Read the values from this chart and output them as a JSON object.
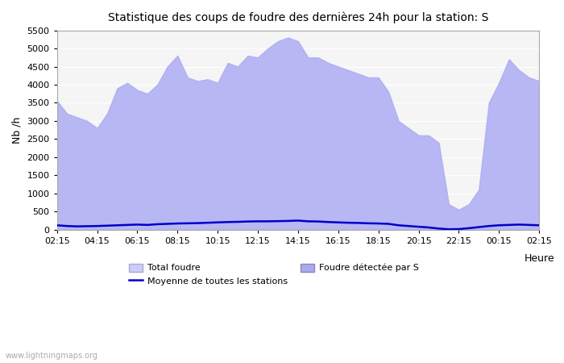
{
  "title": "Statistique des coups de foudre des dernières 24h pour la station: S",
  "xlabel": "Heure",
  "ylabel": "Nb /h",
  "xlim": [
    0,
    24
  ],
  "ylim": [
    0,
    5500
  ],
  "yticks": [
    0,
    500,
    1000,
    1500,
    2000,
    2500,
    3000,
    3500,
    4000,
    4500,
    5000,
    5500
  ],
  "xtick_labels": [
    "02:15",
    "04:15",
    "06:15",
    "08:15",
    "10:15",
    "12:15",
    "14:15",
    "16:15",
    "18:15",
    "20:15",
    "22:15",
    "00:15",
    "02:15"
  ],
  "background_color": "#ffffff",
  "plot_bg_color": "#f5f5f5",
  "total_foudre_color": "#ccccff",
  "foudre_detectee_color": "#aaaaee",
  "moyenne_color": "#0000cc",
  "watermark": "www.lightningmaps.org",
  "legend_total": "Total foudre",
  "legend_foudre": "Foudre détectée par S",
  "legend_moyenne": "Moyenne de toutes les stations",
  "x": [
    0,
    0.5,
    1,
    1.5,
    2,
    2.5,
    3,
    3.5,
    4,
    4.5,
    5,
    5.5,
    6,
    6.5,
    7,
    7.5,
    8,
    8.5,
    9,
    9.5,
    10,
    10.5,
    11,
    11.5,
    12,
    12.5,
    13,
    13.5,
    14,
    14.5,
    15,
    15.5,
    16,
    16.5,
    17,
    17.5,
    18,
    18.5,
    19,
    19.5,
    20,
    20.5,
    21,
    21.5,
    22,
    22.5,
    23,
    23.5,
    24
  ],
  "total_foudre_y": [
    3550,
    3200,
    3100,
    3000,
    2800,
    3200,
    3900,
    4050,
    3850,
    3750,
    4000,
    4500,
    4800,
    4200,
    4100,
    4150,
    4050,
    4600,
    4500,
    4800,
    4750,
    5000,
    5200,
    5300,
    5200,
    4750,
    4750,
    4600,
    4500,
    4400,
    4300,
    4200,
    4200,
    3800,
    3000,
    2800,
    2600,
    2600,
    2400,
    700,
    550,
    700,
    1100,
    3500,
    4050,
    4700,
    4400,
    4200,
    4100
  ],
  "foudre_detectee_y": [
    3550,
    3200,
    3100,
    3000,
    2800,
    3200,
    3900,
    4050,
    3850,
    3750,
    4000,
    4500,
    4800,
    4200,
    4100,
    4150,
    4050,
    4600,
    4500,
    4800,
    4750,
    5000,
    5200,
    5300,
    5200,
    4750,
    4750,
    4600,
    4500,
    4400,
    4300,
    4200,
    4200,
    3800,
    3000,
    2800,
    2600,
    2600,
    2400,
    700,
    550,
    700,
    1100,
    3500,
    4050,
    4700,
    4400,
    4200,
    4100
  ],
  "moyenne_y": [
    120,
    100,
    90,
    95,
    100,
    110,
    120,
    130,
    140,
    130,
    150,
    160,
    170,
    175,
    180,
    190,
    200,
    210,
    215,
    225,
    230,
    230,
    235,
    240,
    250,
    230,
    225,
    210,
    200,
    190,
    185,
    175,
    170,
    160,
    120,
    100,
    80,
    60,
    30,
    10,
    15,
    40,
    70,
    100,
    120,
    130,
    140,
    130,
    120
  ]
}
